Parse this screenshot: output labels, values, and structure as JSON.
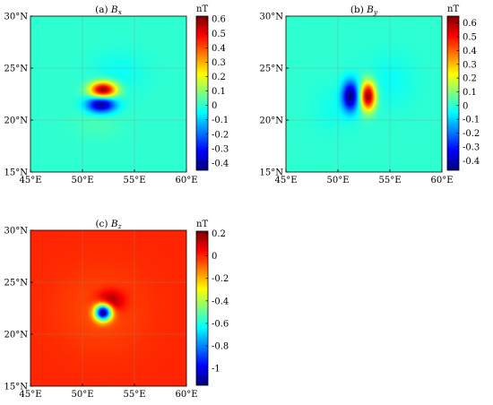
{
  "chart_data": [
    {
      "type": "heatmap",
      "title_prefix": "(a)",
      "title_symbol": "B",
      "title_subscript": "x",
      "x_ticks": [
        "45°E",
        "50°E",
        "55°E",
        "60°E"
      ],
      "y_ticks": [
        "15°N",
        "20°N",
        "25°N",
        "30°N"
      ],
      "xlim": [
        45,
        60
      ],
      "ylim": [
        15,
        30
      ],
      "grid": true,
      "background_value": 0,
      "colorbar": {
        "unit": "nT",
        "range": [
          -0.45,
          0.62
        ],
        "ticks": [
          -0.4,
          -0.3,
          -0.2,
          -0.1,
          0,
          0.1,
          0.2,
          0.3,
          0.4,
          0.5,
          0.6
        ],
        "tick_labels": [
          "-0.4",
          "-0.3",
          "-0.2",
          "-0.1",
          "0",
          "0.1",
          "0.2",
          "0.3",
          "0.4",
          "0.5",
          "0.6"
        ]
      },
      "features": [
        {
          "lon": 52.0,
          "lat": 22.9,
          "amplitude": 0.62,
          "sigma_lon": 0.9,
          "sigma_lat": 0.55
        },
        {
          "lon": 51.8,
          "lat": 21.5,
          "amplitude": -0.45,
          "sigma_lon": 0.95,
          "sigma_lat": 0.55
        },
        {
          "lon": 53.5,
          "lat": 24.5,
          "amplitude": -0.04,
          "sigma_lon": 1.8,
          "sigma_lat": 1.4
        },
        {
          "lon": 51.5,
          "lat": 19.8,
          "amplitude": 0.03,
          "sigma_lon": 1.5,
          "sigma_lat": 1.0
        }
      ]
    },
    {
      "type": "heatmap",
      "title_prefix": "(b)",
      "title_symbol": "B",
      "title_subscript": "y",
      "x_ticks": [
        "45°E",
        "50°E",
        "55°E",
        "60°E"
      ],
      "y_ticks": [
        "15°N",
        "20°N",
        "25°N",
        "30°N"
      ],
      "xlim": [
        45,
        60
      ],
      "ylim": [
        15,
        30
      ],
      "grid": true,
      "background_value": 0,
      "colorbar": {
        "unit": "nT",
        "range": [
          -0.47,
          0.65
        ],
        "ticks": [
          -0.4,
          -0.3,
          -0.2,
          -0.1,
          0,
          0.1,
          0.2,
          0.3,
          0.4,
          0.5,
          0.6
        ],
        "tick_labels": [
          "-0.4",
          "-0.3",
          "-0.2",
          "-0.1",
          "0",
          "0.1",
          "0.2",
          "0.3",
          "0.4",
          "0.5",
          "0.6"
        ]
      },
      "features": [
        {
          "lon": 52.9,
          "lat": 22.3,
          "amplitude": 0.65,
          "sigma_lon": 0.5,
          "sigma_lat": 0.95
        },
        {
          "lon": 51.2,
          "lat": 22.3,
          "amplitude": -0.47,
          "sigma_lon": 0.55,
          "sigma_lat": 1.0
        },
        {
          "lon": 55.0,
          "lat": 23.8,
          "amplitude": -0.04,
          "sigma_lon": 1.7,
          "sigma_lat": 1.8
        },
        {
          "lon": 49.5,
          "lat": 21.0,
          "amplitude": -0.03,
          "sigma_lon": 1.3,
          "sigma_lat": 1.5
        }
      ]
    },
    {
      "type": "heatmap",
      "title_prefix": "(c)",
      "title_symbol": "B",
      "title_subscript": "z",
      "x_ticks": [
        "45°E",
        "50°E",
        "55°E",
        "60°E"
      ],
      "y_ticks": [
        "15°N",
        "20°N",
        "25°N",
        "30°N"
      ],
      "xlim": [
        45,
        60
      ],
      "ylim": [
        15,
        30
      ],
      "grid": true,
      "background_value": 0,
      "colorbar": {
        "unit": "nT",
        "range": [
          -1.15,
          0.22
        ],
        "ticks": [
          -1.0,
          -0.8,
          -0.6,
          -0.4,
          -0.2,
          0,
          0.2
        ],
        "tick_labels": [
          "-1",
          "-0.8",
          "-0.6",
          "-0.4",
          "-0.2",
          "0",
          "0.2"
        ]
      },
      "features": [
        {
          "lon": 52.0,
          "lat": 22.1,
          "amplitude": -1.15,
          "sigma_lon": 0.55,
          "sigma_lat": 0.55
        },
        {
          "lon": 52.7,
          "lat": 23.2,
          "amplitude": 0.22,
          "sigma_lon": 0.9,
          "sigma_lat": 0.7
        },
        {
          "lon": 51.8,
          "lat": 22.3,
          "amplitude": -0.05,
          "sigma_lon": 3.2,
          "sigma_lat": 3.0
        }
      ]
    }
  ]
}
